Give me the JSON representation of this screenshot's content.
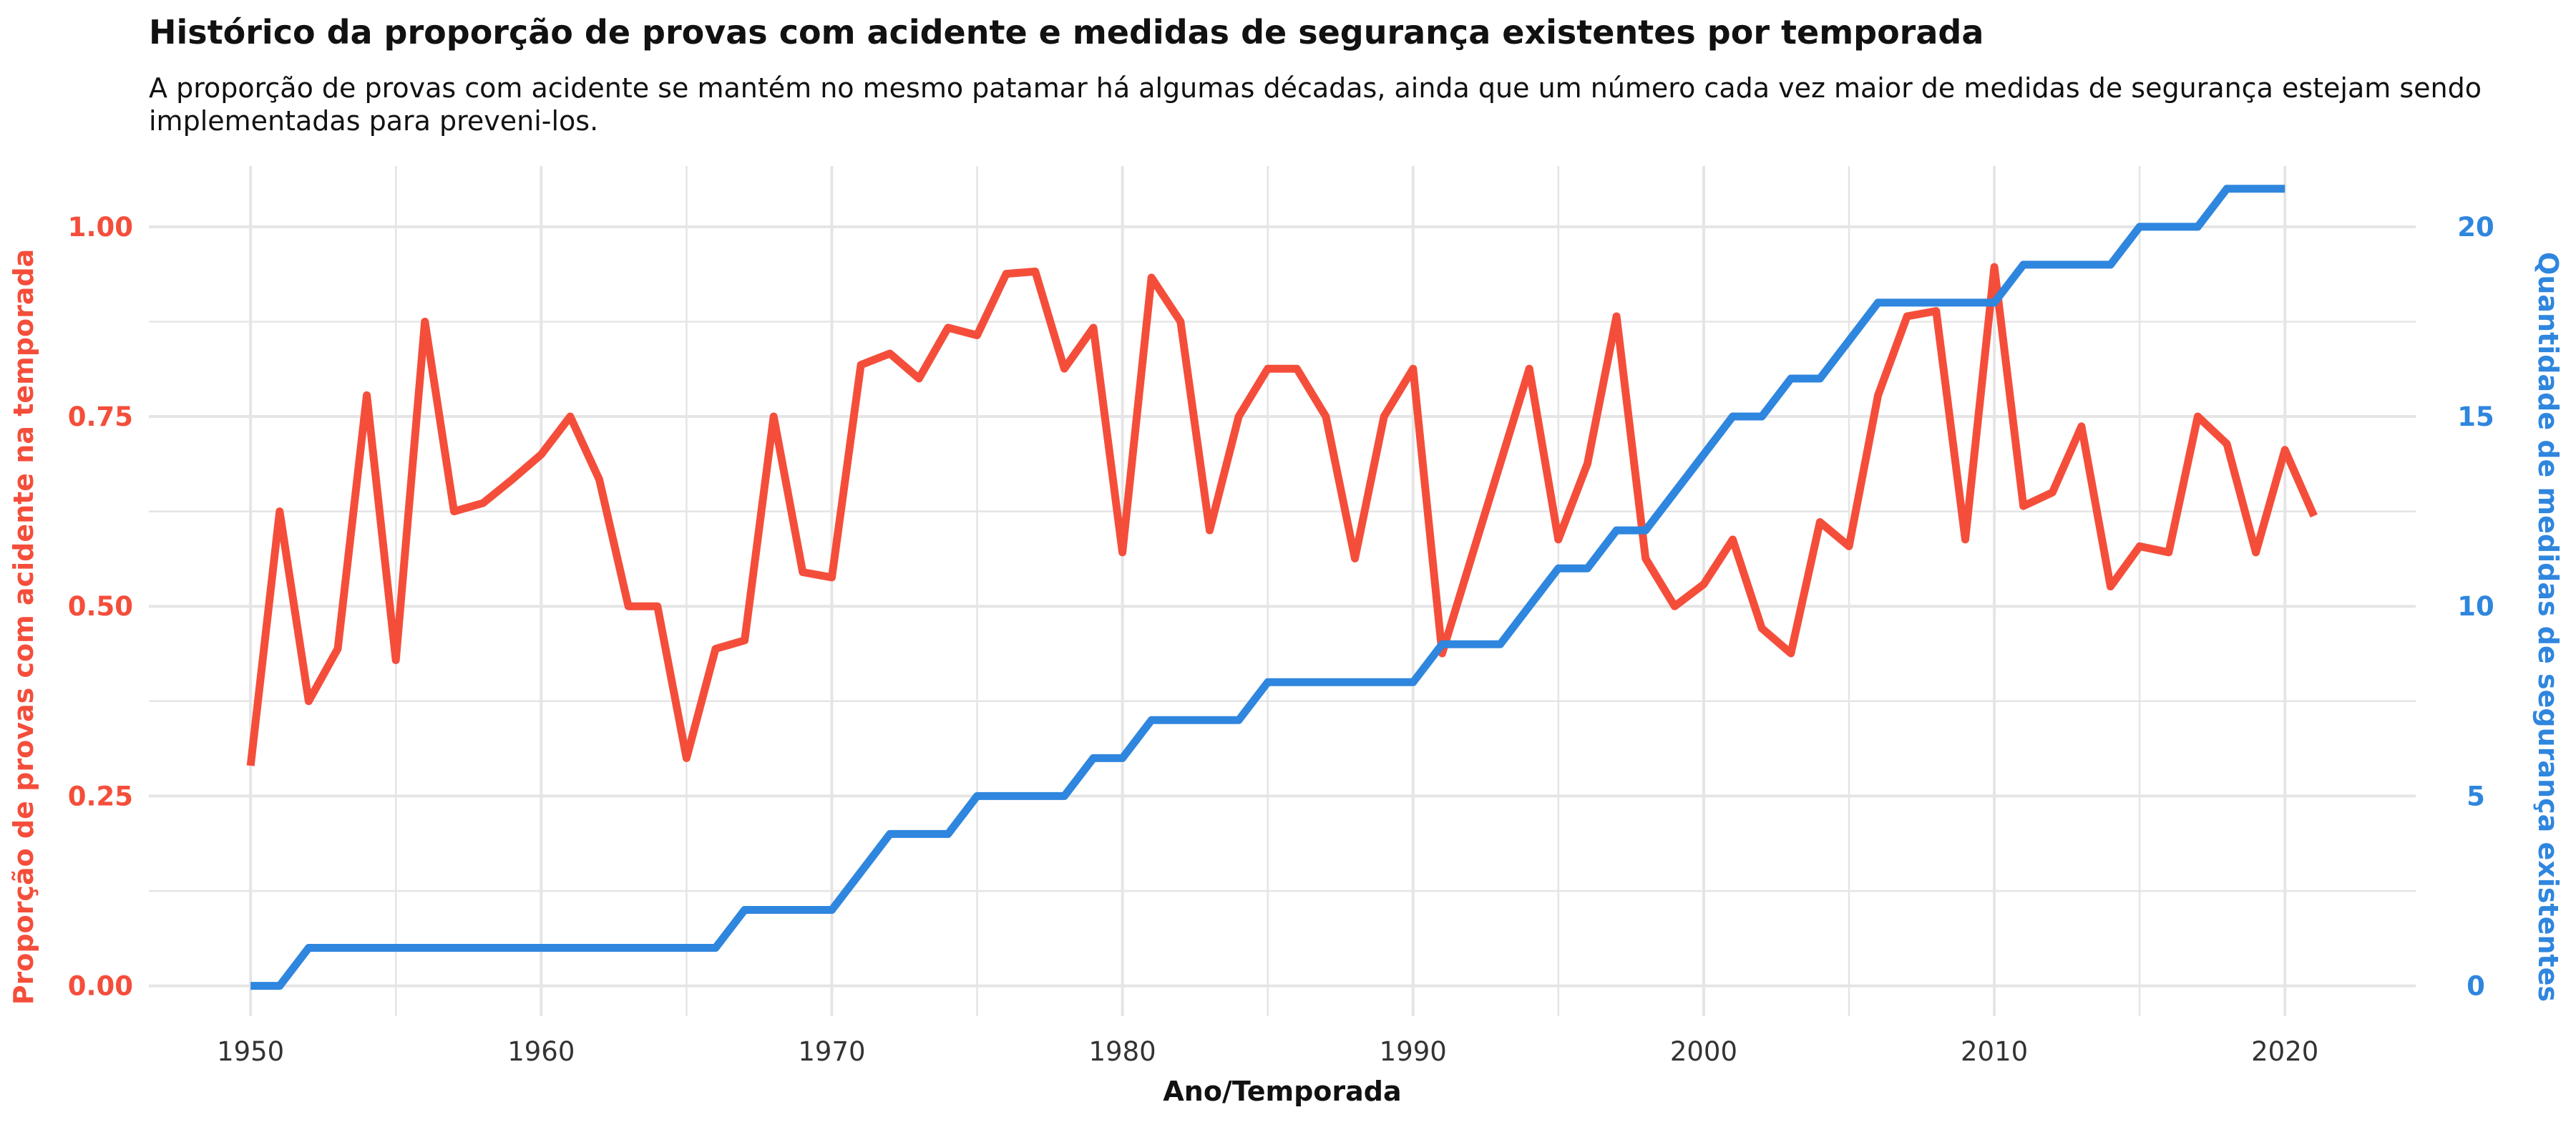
{
  "title": "Histórico da proporção de provas com acidente e medidas de segurança existentes por temporada",
  "subtitle": "A proporção de provas com acidente se mantém no mesmo patamar há algumas décadas, ainda que um número cada vez maior de medidas de segurança estejam sendo implementadas para preveni-los.",
  "colors": {
    "left_series": "#F44E3B",
    "right_series": "#2F86DE",
    "grid": "#E5E5E5"
  },
  "chart_data": {
    "type": "line",
    "title": "Histórico da proporção de provas com acidente e medidas de segurança existentes por temporada",
    "xlabel": "Ano/Temporada",
    "ylabel_left": "Proporção de provas com acidente na temporada",
    "ylabel_right": "Quantidade de medidas de segurança existentes",
    "xlim": [
      1946.5,
      2024.5
    ],
    "ylim_left": [
      -0.04,
      1.08
    ],
    "ylim_right": [
      -0.8,
      21.6
    ],
    "x_ticks": [
      1950,
      1960,
      1970,
      1980,
      1990,
      2000,
      2010,
      2020
    ],
    "y_ticks_left": [
      "0.00",
      "0.25",
      "0.50",
      "0.75",
      "1.00"
    ],
    "y_ticks_right": [
      "0",
      "5",
      "10",
      "15",
      "20"
    ],
    "grid": true,
    "legend": "none",
    "series": [
      {
        "axis": "left",
        "x": [
          1950,
          1951,
          1952,
          1953,
          1954,
          1955,
          1956,
          1957,
          1958,
          1959,
          1960,
          1961,
          1962,
          1963,
          1964,
          1965,
          1966,
          1967,
          1968,
          1969,
          1970,
          1971,
          1972,
          1973,
          1974,
          1975,
          1976,
          1977,
          1978,
          1979,
          1980,
          1981,
          1982,
          1983,
          1984,
          1985,
          1986,
          1987,
          1988,
          1989,
          1990,
          1991,
          1992,
          1993,
          1994,
          1995,
          1996,
          1997,
          1998,
          1999,
          2000,
          2001,
          2002,
          2003,
          2004,
          2005,
          2006,
          2007,
          2008,
          2009,
          2010,
          2011,
          2012,
          2013,
          2014,
          2015,
          2016,
          2017,
          2018,
          2019,
          2020,
          2021
        ],
        "values": [
          0.29,
          0.625,
          0.375,
          0.444,
          0.778,
          0.429,
          0.875,
          0.625,
          0.636,
          0.667,
          0.7,
          0.75,
          0.667,
          0.5,
          0.5,
          0.3,
          0.444,
          0.455,
          0.75,
          0.545,
          0.538,
          0.818,
          0.833,
          0.8,
          0.867,
          0.857,
          0.938,
          0.941,
          0.813,
          0.867,
          0.571,
          0.933,
          0.875,
          0.6,
          0.75,
          0.813,
          0.813,
          0.75,
          0.563,
          0.75,
          0.813,
          0.438,
          0.563,
          0.688,
          0.813,
          0.588,
          0.688,
          0.882,
          0.563,
          0.5,
          0.529,
          0.588,
          0.471,
          0.438,
          0.611,
          0.579,
          0.778,
          0.882,
          0.889,
          0.588,
          0.947,
          0.632,
          0.65,
          0.737,
          0.526,
          0.579,
          0.571,
          0.75,
          0.714,
          0.571,
          0.706,
          0.619
        ]
      },
      {
        "axis": "right",
        "x": [
          1950,
          1951,
          1952,
          1953,
          1954,
          1955,
          1956,
          1957,
          1958,
          1959,
          1960,
          1961,
          1962,
          1963,
          1964,
          1965,
          1966,
          1967,
          1968,
          1969,
          1970,
          1971,
          1972,
          1973,
          1974,
          1975,
          1976,
          1977,
          1978,
          1979,
          1980,
          1981,
          1982,
          1983,
          1984,
          1985,
          1986,
          1987,
          1988,
          1989,
          1990,
          1991,
          1992,
          1993,
          1994,
          1995,
          1996,
          1997,
          1998,
          1999,
          2000,
          2001,
          2002,
          2003,
          2004,
          2005,
          2006,
          2007,
          2008,
          2009,
          2010,
          2011,
          2012,
          2013,
          2014,
          2015,
          2016,
          2017,
          2018,
          2019,
          2020
        ],
        "values": [
          0,
          0,
          1,
          1,
          1,
          1,
          1,
          1,
          1,
          1,
          1,
          1,
          1,
          1,
          1,
          1,
          1,
          2,
          2,
          2,
          2,
          3,
          4,
          4,
          4,
          5,
          5,
          5,
          5,
          6,
          6,
          7,
          7,
          7,
          7,
          8,
          8,
          8,
          8,
          8,
          8,
          9,
          9,
          9,
          10,
          11,
          11,
          12,
          12,
          13,
          14,
          15,
          15,
          16,
          16,
          17,
          18,
          18,
          18,
          18,
          18,
          19,
          19,
          19,
          19,
          20,
          20,
          20,
          21,
          21,
          21
        ]
      }
    ]
  }
}
